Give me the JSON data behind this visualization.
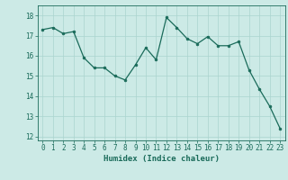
{
  "x": [
    0,
    1,
    2,
    3,
    4,
    5,
    6,
    7,
    8,
    9,
    10,
    11,
    12,
    13,
    14,
    15,
    16,
    17,
    18,
    19,
    20,
    21,
    22,
    23
  ],
  "y": [
    17.3,
    17.4,
    17.1,
    17.2,
    15.9,
    15.4,
    15.4,
    15.0,
    14.8,
    15.55,
    16.4,
    15.8,
    17.9,
    17.4,
    16.85,
    16.6,
    16.95,
    16.5,
    16.5,
    16.7,
    15.3,
    14.35,
    13.5,
    12.4
  ],
  "line_color": "#1a6b5a",
  "marker": "o",
  "marker_size": 2.0,
  "bg_color": "#cceae6",
  "grid_color": "#aad4ce",
  "tick_color": "#1a6b5a",
  "xlabel": "Humidex (Indice chaleur)",
  "ylim": [
    11.8,
    18.5
  ],
  "xlim": [
    -0.5,
    23.5
  ],
  "yticks": [
    12,
    13,
    14,
    15,
    16,
    17,
    18
  ],
  "xticks": [
    0,
    1,
    2,
    3,
    4,
    5,
    6,
    7,
    8,
    9,
    10,
    11,
    12,
    13,
    14,
    15,
    16,
    17,
    18,
    19,
    20,
    21,
    22,
    23
  ],
  "xlabel_fontsize": 6.5,
  "tick_fontsize": 5.5
}
